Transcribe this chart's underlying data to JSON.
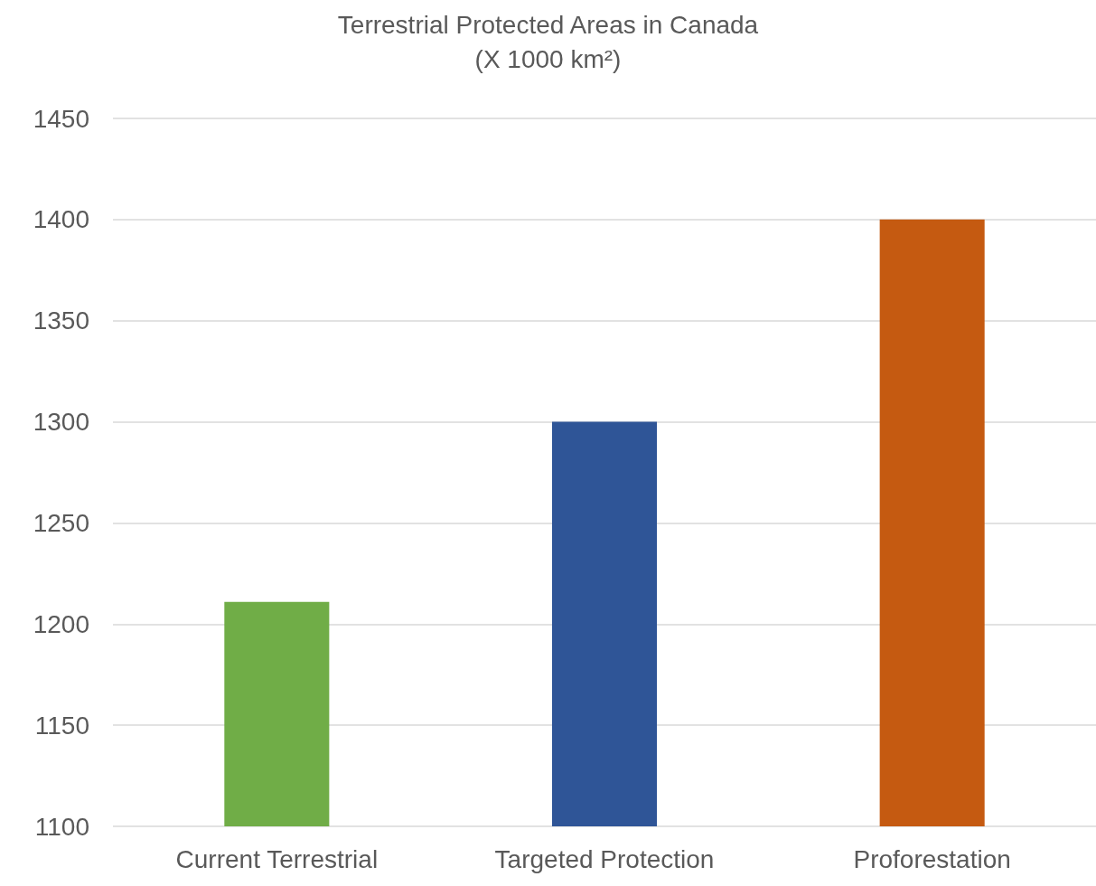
{
  "chart_data": {
    "type": "bar",
    "title": "Terrestrial Protected Areas in Canada",
    "subtitle": "(X 1000 km²)",
    "categories": [
      "Current Terrestrial",
      "Targeted Protection",
      "Proforestation"
    ],
    "values": [
      1211,
      1300,
      1400
    ],
    "colors": [
      "#70ad47",
      "#2f5597",
      "#c55a11"
    ],
    "ylim": [
      1100,
      1450
    ],
    "yticks": [
      1100,
      1150,
      1200,
      1250,
      1300,
      1350,
      1400,
      1450
    ],
    "grid": "y"
  }
}
